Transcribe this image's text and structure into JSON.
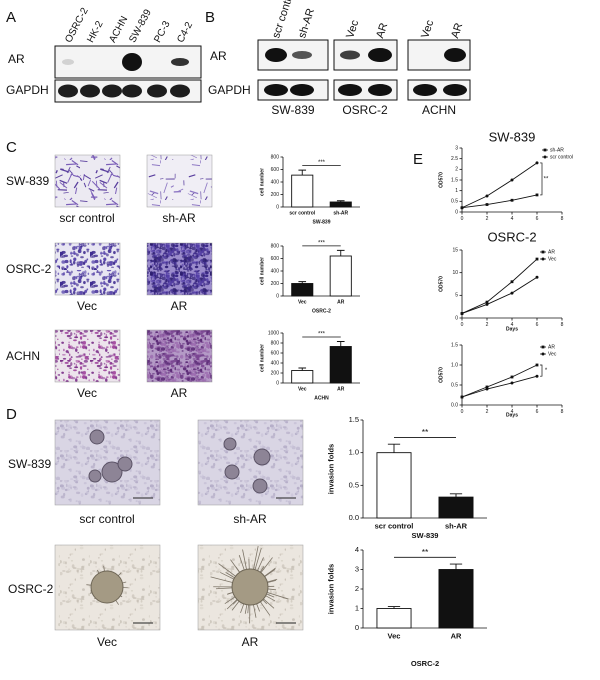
{
  "panels": {
    "A": {
      "label": "A",
      "lanes": [
        "OSRC-2",
        "HK-2",
        "ACHN",
        "SW-839",
        "PC-3",
        "C4-2"
      ],
      "rows": [
        "AR",
        "GAPDH"
      ]
    },
    "B": {
      "label": "B",
      "lanes": [
        "scr control",
        "sh-AR",
        "Vec",
        "AR",
        "Vec",
        "AR"
      ],
      "rows": [
        "AR",
        "GAPDH"
      ],
      "groups": [
        "SW-839",
        "OSRC-2",
        "ACHN"
      ]
    },
    "C": {
      "label": "C",
      "rows": [
        "SW-839",
        "OSRC-2",
        "ACHN"
      ],
      "captions": [
        "scr control",
        "sh-AR",
        "Vec",
        "AR",
        "Vec",
        "AR"
      ]
    },
    "D": {
      "label": "D",
      "rows": [
        "SW-839",
        "OSRC-2"
      ],
      "captions": [
        "scr control",
        "sh-AR",
        "Vec",
        "AR"
      ]
    },
    "E": {
      "label": "E"
    }
  },
  "chart_data": [
    {
      "type": "bar",
      "ylabel": "cell number",
      "xlabel": "SW-839",
      "categories": [
        "scr control",
        "sh-AR"
      ],
      "values": [
        510,
        80
      ],
      "errors": [
        80,
        20
      ],
      "colors": [
        "#ffffff",
        "#111111"
      ],
      "ylim": [
        0,
        800
      ],
      "yticks": [
        0,
        200,
        400,
        600,
        800
      ],
      "annotation": "***"
    },
    {
      "type": "bar",
      "ylabel": "cell number",
      "xlabel": "OSRC-2",
      "categories": [
        "Vec",
        "AR"
      ],
      "values": [
        200,
        640
      ],
      "errors": [
        30,
        90
      ],
      "colors": [
        "#111111",
        "#ffffff"
      ],
      "ylim": [
        0,
        800
      ],
      "yticks": [
        0,
        200,
        400,
        600,
        800
      ],
      "annotation": "***"
    },
    {
      "type": "bar",
      "ylabel": "cell number",
      "xlabel": "ACHN",
      "categories": [
        "Vec",
        "AR"
      ],
      "values": [
        250,
        730
      ],
      "errors": [
        50,
        100
      ],
      "colors": [
        "#ffffff",
        "#111111"
      ],
      "ylim": [
        0,
        1000
      ],
      "yticks": [
        0,
        200,
        400,
        600,
        800,
        1000
      ],
      "annotation": "***"
    },
    {
      "type": "line",
      "title": "SW-839",
      "ylabel": "OD570",
      "x": [
        0,
        2,
        4,
        6
      ],
      "xlim": [
        0,
        8
      ],
      "xticks": [
        0,
        2,
        4,
        6,
        8
      ],
      "ylim": [
        0,
        3
      ],
      "yticks": [
        0,
        0.5,
        1,
        1.5,
        2,
        2.5,
        3
      ],
      "legend": "upper left",
      "annotation": "**",
      "series": [
        {
          "name": "sh-AR",
          "color": "#111111",
          "values": [
            0.2,
            0.35,
            0.55,
            0.8
          ]
        },
        {
          "name": "scr control",
          "color": "#111111",
          "values": [
            0.2,
            0.75,
            1.5,
            2.3
          ]
        }
      ]
    },
    {
      "type": "line",
      "title": "OSRC-2",
      "ylabel": "OD570",
      "xlabel": "Days",
      "x": [
        0,
        2,
        4,
        6
      ],
      "xlim": [
        0,
        8
      ],
      "xticks": [
        0,
        2,
        4,
        6,
        8
      ],
      "ylim": [
        0,
        15
      ],
      "yticks": [
        0,
        5,
        10,
        15
      ],
      "legend": "upper right",
      "series": [
        {
          "name": "AR",
          "color": "#111111",
          "values": [
            1,
            3.5,
            8,
            13
          ]
        },
        {
          "name": "Vec",
          "color": "#111111",
          "values": [
            1,
            3,
            5.5,
            9
          ]
        }
      ]
    },
    {
      "type": "line",
      "ylabel": "OD570",
      "xlabel": "Days",
      "x": [
        0,
        2,
        4,
        6
      ],
      "xlim": [
        0,
        8
      ],
      "xticks": [
        0,
        2,
        4,
        6,
        8
      ],
      "ylim": [
        0,
        1.5
      ],
      "yticks": [
        {
          "value": 0,
          "label": "0.0"
        },
        0.5,
        {
          "value": 1,
          "label": "1.0"
        },
        1.5
      ],
      "legend": "upper right",
      "annotation": "*",
      "series": [
        {
          "name": "AR",
          "color": "#111111",
          "values": [
            0.2,
            0.45,
            0.7,
            1.0
          ]
        },
        {
          "name": "Vec",
          "color": "#111111",
          "values": [
            0.2,
            0.4,
            0.55,
            0.72
          ]
        }
      ]
    },
    {
      "type": "bar",
      "ylabel": "invasion folds",
      "xlabel": "SW-839",
      "categories": [
        "scr control",
        "sh-AR"
      ],
      "values": [
        1.0,
        0.32
      ],
      "errors": [
        0.13,
        0.05
      ],
      "colors": [
        "#ffffff",
        "#111111"
      ],
      "ylim": [
        0,
        1.5
      ],
      "yticks": [
        {
          "value": 0,
          "label": "0.0"
        },
        0.5,
        {
          "value": 1,
          "label": "1.0"
        },
        1.5
      ],
      "annotation": "**"
    },
    {
      "type": "bar",
      "ylabel": "invasion folds",
      "xlabel": "OSRC-2",
      "categories": [
        "Vec",
        "AR"
      ],
      "values": [
        1.0,
        3.0
      ],
      "errors": [
        0.1,
        0.28
      ],
      "colors": [
        "#ffffff",
        "#111111"
      ],
      "ylim": [
        0,
        4
      ],
      "yticks": [
        0,
        1,
        2,
        3,
        4
      ],
      "annotation": "**"
    }
  ]
}
